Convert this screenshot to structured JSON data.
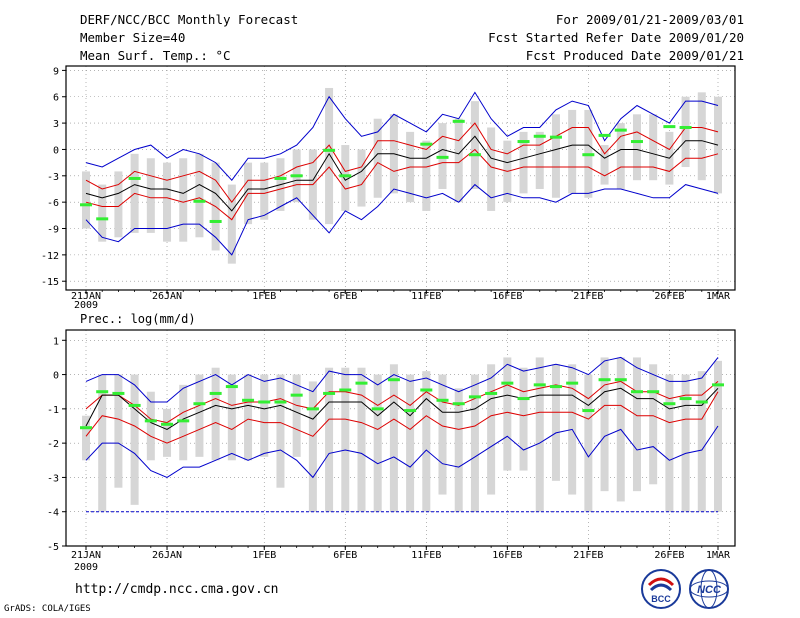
{
  "header": {
    "title": "DERF/NCC/BCC Monthly Forecast",
    "member_size": "Member Size=40",
    "variable": "Mean Surf. Temp.: °C",
    "period": "For 2009/01/21-2009/03/01",
    "started": "Fcst Started Refer Date 2009/01/20",
    "produced": "Fcst Produced Date 2009/01/21"
  },
  "footer": {
    "url": "http://cmdp.ncc.cma.gov.cn",
    "credit": "GrADS: COLA/IGES",
    "logo_bcc": "BCC",
    "logo_ncc": "NCC"
  },
  "colors": {
    "envelope": "#0000cc",
    "quartile": "#dd0000",
    "median": "#000000",
    "bar": "#d6d6d6",
    "observed": "#33ee33",
    "baseline": "#0000cc"
  },
  "chart_data": [
    {
      "type": "box",
      "title": "Mean Surf. Temp.: °C",
      "xlabel": "",
      "ylabel": "",
      "ylim": [
        -16,
        9.5
      ],
      "yticks": [
        9,
        6,
        3,
        0,
        -3,
        -6,
        -9,
        -12,
        -15
      ],
      "xtick_labels": [
        "21JAN",
        "26JAN",
        "1FEB",
        "6FEB",
        "11FEB",
        "16FEB",
        "21FEB",
        "26FEB",
        "1MAR"
      ],
      "xtick_days": [
        0,
        5,
        11,
        16,
        21,
        26,
        31,
        36,
        39
      ],
      "year_label": "2009",
      "days": [
        0,
        1,
        2,
        3,
        4,
        5,
        6,
        7,
        8,
        9,
        10,
        11,
        12,
        13,
        14,
        15,
        16,
        17,
        18,
        19,
        20,
        21,
        22,
        23,
        24,
        25,
        26,
        27,
        28,
        29,
        30,
        31,
        32,
        33,
        34,
        35,
        36,
        37,
        38,
        39
      ],
      "max": [
        -1.5,
        -2,
        -1,
        0,
        0.5,
        -1,
        0,
        -0.5,
        -1.5,
        -3.5,
        -1,
        -1,
        -0.5,
        0.5,
        2.5,
        6,
        3.5,
        1.5,
        2,
        4,
        3,
        2,
        4,
        3.5,
        6.5,
        3.5,
        1.5,
        2.5,
        2.5,
        4.5,
        5.5,
        5,
        1,
        3.5,
        5,
        4,
        3,
        5.5,
        5.5,
        5
      ],
      "q3": [
        -3.5,
        -4.5,
        -4,
        -2.5,
        -3,
        -3.5,
        -3,
        -2.5,
        -3.5,
        -6,
        -3.5,
        -3.5,
        -3,
        -2,
        -1.5,
        0.5,
        -2.5,
        -2,
        1,
        1,
        0.5,
        0,
        1.5,
        1,
        3,
        0,
        -0.5,
        0.5,
        0.5,
        1.5,
        2.5,
        2.5,
        -0.5,
        1.5,
        2,
        1,
        0,
        2.5,
        2.5,
        2
      ],
      "median": [
        -5,
        -5.5,
        -5,
        -4,
        -4.5,
        -4.5,
        -5,
        -4,
        -5,
        -7,
        -4.5,
        -4.5,
        -4,
        -3.5,
        -3.5,
        -0.5,
        -3.5,
        -2.5,
        -0.5,
        -0.5,
        -1,
        -1,
        0,
        -0.5,
        1.5,
        -1,
        -1.5,
        -1,
        -0.5,
        0,
        0.5,
        0.5,
        -1,
        0,
        0,
        -0.5,
        -1,
        1,
        1,
        0.5
      ],
      "q1": [
        -6,
        -6.5,
        -6.5,
        -5,
        -5.5,
        -5.5,
        -6,
        -5.5,
        -6.5,
        -8,
        -5,
        -5,
        -4.5,
        -4,
        -4,
        -2,
        -4.5,
        -4,
        -1.5,
        -2.5,
        -2,
        -2,
        -1.5,
        -1.5,
        0,
        -2,
        -2.5,
        -2,
        -2,
        -2,
        -2,
        -2,
        -3,
        -2,
        -2,
        -2,
        -2.5,
        -1,
        -1,
        -0.5
      ],
      "min": [
        -8,
        -10,
        -10.5,
        -9,
        -9,
        -9,
        -8.5,
        -8.5,
        -10,
        -12,
        -8,
        -7.5,
        -6.5,
        -5.5,
        -7.5,
        -9.5,
        -7,
        -8,
        -6.5,
        -4.5,
        -5,
        -5.5,
        -5,
        -6,
        -4,
        -5.5,
        -5,
        -5.5,
        -5.5,
        -6,
        -5,
        -5,
        -4.5,
        -4.5,
        -5,
        -5.5,
        -5.5,
        -4,
        -4.5,
        -5
      ],
      "bar_top": [
        -2.5,
        -4,
        -2.5,
        -0.5,
        -1,
        -1.5,
        -1,
        -0.5,
        -1.5,
        -4,
        -1.5,
        -1.5,
        -1,
        0,
        0,
        7,
        0.5,
        0,
        3.5,
        4,
        2,
        1,
        3,
        3.5,
        5.5,
        2.5,
        1,
        2,
        2,
        4,
        4.5,
        4.5,
        0.5,
        3,
        4,
        4,
        2,
        6,
        6.5,
        6
      ],
      "bar_bot": [
        -9,
        -10.5,
        -10,
        -9.5,
        -9.5,
        -10.5,
        -10.5,
        -10,
        -11.5,
        -13,
        -8.5,
        -8,
        -7,
        -6,
        -8,
        -8.5,
        -7,
        -6.5,
        -5.5,
        -5,
        -6,
        -7,
        -4.5,
        -6,
        -4.5,
        -7,
        -6,
        -5,
        -4.5,
        -5.5,
        -5,
        -5.5,
        -4,
        -4.5,
        -3.5,
        -3.5,
        -4,
        -2,
        -3.5,
        -5
      ],
      "observed": [
        -6.3,
        -7.9,
        null,
        -3.3,
        null,
        null,
        null,
        -5.9,
        -8.2,
        null,
        null,
        null,
        -3.3,
        -3,
        null,
        -0.1,
        -3,
        null,
        null,
        null,
        null,
        0.6,
        -0.9,
        3.2,
        -0.6,
        null,
        null,
        0.9,
        1.5,
        1.4,
        null,
        -0.6,
        1.6,
        2.2,
        0.9,
        null,
        2.6,
        2.5,
        null,
        null
      ]
    },
    {
      "type": "box",
      "title": "Prec.: log(mm/d)",
      "xlabel": "",
      "ylabel": "",
      "ylim": [
        -5,
        1.3
      ],
      "yticks": [
        1,
        0,
        -1,
        -2,
        -3,
        -4,
        -5
      ],
      "xtick_labels": [
        "21JAN",
        "26JAN",
        "1FEB",
        "6FEB",
        "11FEB",
        "16FEB",
        "21FEB",
        "26FEB",
        "1MAR"
      ],
      "xtick_days": [
        0,
        5,
        11,
        16,
        21,
        26,
        31,
        36,
        39
      ],
      "year_label": "2009",
      "baseline": -4,
      "days": [
        0,
        1,
        2,
        3,
        4,
        5,
        6,
        7,
        8,
        9,
        10,
        11,
        12,
        13,
        14,
        15,
        16,
        17,
        18,
        19,
        20,
        21,
        22,
        23,
        24,
        25,
        26,
        27,
        28,
        29,
        30,
        31,
        32,
        33,
        34,
        35,
        36,
        37,
        38,
        39
      ],
      "max": [
        -0.2,
        0,
        0,
        -0.3,
        -0.8,
        -0.8,
        -0.4,
        -0.2,
        0,
        -0.3,
        0,
        -0.2,
        -0.1,
        -0.3,
        -0.5,
        0.1,
        0,
        0,
        -0.3,
        0,
        -0.2,
        -0.1,
        -0.3,
        -0.5,
        -0.3,
        -0.1,
        0.3,
        0.1,
        0.2,
        0.3,
        0.2,
        0,
        0.4,
        0.5,
        0.2,
        0,
        -0.2,
        -0.2,
        -0.1,
        0.5
      ],
      "q3": [
        -1,
        -0.6,
        -0.6,
        -0.9,
        -1.3,
        -1.4,
        -1.1,
        -0.9,
        -0.7,
        -0.9,
        -0.8,
        -0.8,
        -0.7,
        -0.9,
        -1,
        -0.5,
        -0.5,
        -0.6,
        -0.9,
        -0.6,
        -0.9,
        -0.5,
        -0.8,
        -0.9,
        -0.7,
        -0.5,
        -0.3,
        -0.5,
        -0.4,
        -0.3,
        -0.4,
        -0.7,
        -0.3,
        -0.2,
        -0.5,
        -0.5,
        -0.7,
        -0.6,
        -0.6,
        -0.2
      ],
      "median": [
        -1.5,
        -0.6,
        -0.6,
        -1,
        -1.4,
        -1.6,
        -1.3,
        -1.1,
        -0.9,
        -1,
        -0.9,
        -1,
        -0.9,
        -1.1,
        -1.3,
        -0.8,
        -0.8,
        -0.8,
        -1.2,
        -0.8,
        -1.2,
        -0.7,
        -1.1,
        -1.1,
        -1,
        -0.7,
        -0.6,
        -0.7,
        -0.6,
        -0.6,
        -0.6,
        -0.9,
        -0.5,
        -0.4,
        -0.7,
        -0.7,
        -1,
        -0.9,
        -0.9,
        -0.4
      ],
      "q1": [
        -1.8,
        -1.2,
        -1.3,
        -1.5,
        -1.8,
        -2,
        -1.8,
        -1.6,
        -1.4,
        -1.6,
        -1.3,
        -1.4,
        -1.4,
        -1.6,
        -1.8,
        -1.3,
        -1.3,
        -1.4,
        -1.6,
        -1.3,
        -1.6,
        -1.2,
        -1.5,
        -1.6,
        -1.5,
        -1.2,
        -1.1,
        -1.2,
        -1.1,
        -1.1,
        -1.1,
        -1.3,
        -0.9,
        -0.9,
        -1.2,
        -1.2,
        -1.4,
        -1.3,
        -1.3,
        -0.5
      ],
      "min": [
        -2.5,
        -2,
        -2,
        -2.3,
        -2.8,
        -3,
        -2.7,
        -2.7,
        -2.5,
        -2.3,
        -2.5,
        -2.3,
        -2.2,
        -2.5,
        -3,
        -2.3,
        -2.2,
        -2.3,
        -2.6,
        -2.4,
        -2.7,
        -2.2,
        -2.6,
        -2.7,
        -2.4,
        -2.1,
        -1.8,
        -2.2,
        -2,
        -1.7,
        -1.6,
        -2.4,
        -1.8,
        -1.6,
        -2.2,
        -2.1,
        -2.5,
        -2.3,
        -2.2,
        -1.5
      ],
      "bar_top": [
        -1.2,
        0,
        0,
        0,
        -0.5,
        -1,
        -0.3,
        0,
        0.2,
        0,
        0,
        0,
        0,
        0,
        -0.2,
        0.2,
        0.2,
        0.2,
        0,
        0.3,
        0,
        0.1,
        0,
        -0.4,
        0,
        0.3,
        0.5,
        0.2,
        0.5,
        0.3,
        0.3,
        0,
        0.5,
        0.5,
        0.5,
        0.3,
        0,
        0,
        0.1,
        0.4
      ],
      "bar_bot": [
        -2.5,
        -4,
        -3.3,
        -3.8,
        -2.5,
        -2.4,
        -2.5,
        -2.4,
        -2.5,
        -2.5,
        -2.5,
        -2.4,
        -3.3,
        -2.4,
        -4,
        -4,
        -4,
        -4,
        -4,
        -4,
        -4,
        -4,
        -3.5,
        -4,
        -4,
        -3.5,
        -2.8,
        -2.8,
        -4,
        -3.1,
        -3.5,
        -4,
        -3.4,
        -3.7,
        -3.4,
        -3.2,
        -4,
        -4,
        -4,
        -4
      ],
      "observed": [
        -1.55,
        -0.5,
        -0.55,
        -0.9,
        -1.35,
        -1.45,
        -1.35,
        -0.85,
        -0.55,
        -0.35,
        -0.75,
        -0.8,
        -0.8,
        -0.6,
        -1,
        -0.55,
        -0.45,
        -0.25,
        -1,
        -0.15,
        -1.05,
        -0.45,
        -0.75,
        -0.85,
        -0.65,
        -0.55,
        -0.25,
        -0.7,
        -0.3,
        -0.35,
        -0.25,
        -1.05,
        -0.15,
        -0.15,
        -0.5,
        -0.5,
        -0.85,
        -0.7,
        -0.8,
        -0.3
      ]
    }
  ]
}
